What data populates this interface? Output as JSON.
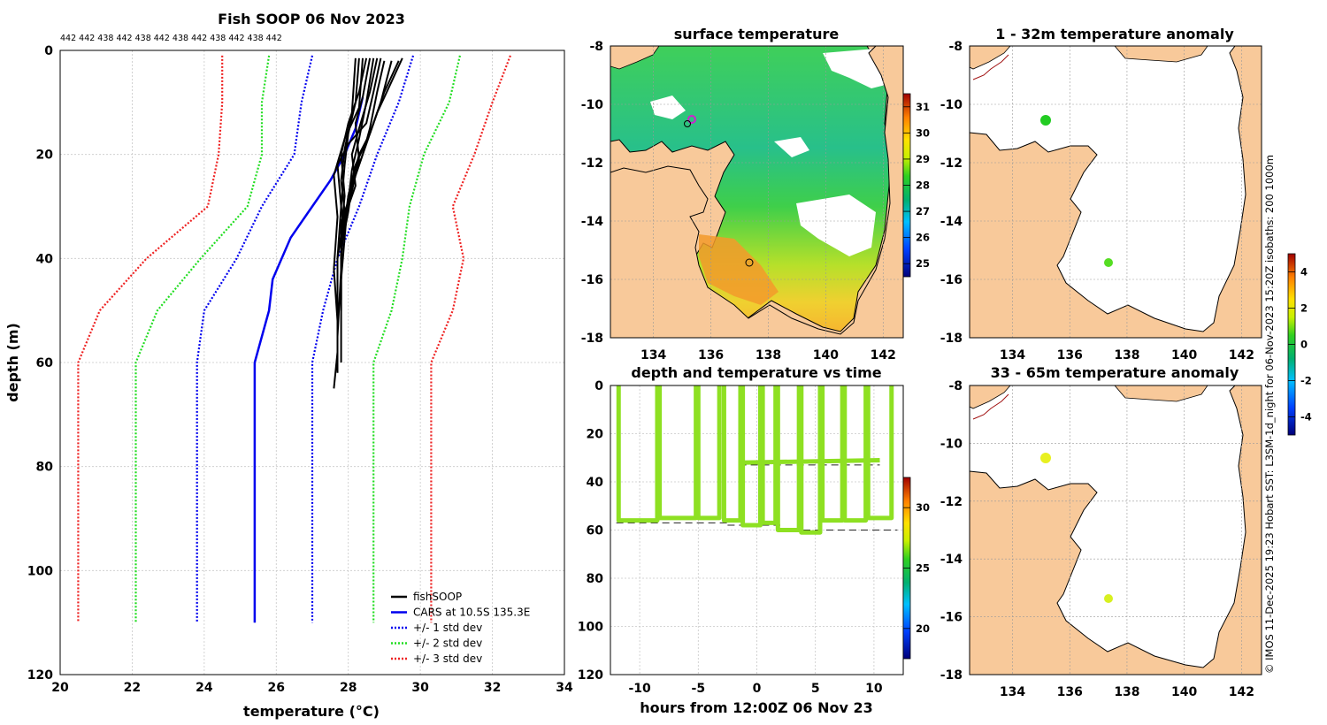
{
  "chart_data": [
    {
      "type": "line",
      "title": "Fish SOOP 06 Nov 2023",
      "header_numbers": "442 442 438 442 438 442 438 442 438 442 438 442",
      "xlabel": "temperature",
      "xlabel_unit": "(°C)",
      "ylabel": "depth (m)",
      "xlim": [
        20,
        34
      ],
      "ylim": [
        0,
        120
      ],
      "xticks": [
        "20",
        "22",
        "24",
        "26",
        "28",
        "30",
        "32",
        "34"
      ],
      "yticks": [
        "0",
        "20",
        "40",
        "60",
        "80",
        "100",
        "120"
      ],
      "legend": [
        "fishSOOP",
        "CARS at 10.5S 135.3E",
        "+/- 1 std dev",
        "+/- 2 std dev",
        "+/- 3 std dev"
      ],
      "series": [
        {
          "name": "CARS at 10.5S 135.3E",
          "color": "#0000ee",
          "style": "solid",
          "points": [
            [
              28.4,
              9
            ],
            [
              28.2,
              15
            ],
            [
              27.9,
              20
            ],
            [
              27.5,
              25
            ],
            [
              26.9,
              31
            ],
            [
              26.4,
              36
            ],
            [
              25.9,
              44
            ],
            [
              25.8,
              50
            ],
            [
              25.4,
              60
            ],
            [
              25.4,
              110
            ]
          ]
        },
        {
          "name": "+1 std dev",
          "color": "#0000ee",
          "style": "dotted",
          "points": [
            [
              29.8,
              1
            ],
            [
              29.4,
              10
            ],
            [
              28.8,
              20
            ],
            [
              28.3,
              30
            ],
            [
              27.7,
              40
            ],
            [
              27.3,
              50
            ],
            [
              27.0,
              60
            ],
            [
              27.0,
              110
            ]
          ]
        },
        {
          "name": "-1 std dev",
          "color": "#0000ee",
          "style": "dotted",
          "points": [
            [
              27.0,
              1
            ],
            [
              26.7,
              10
            ],
            [
              26.5,
              20
            ],
            [
              25.6,
              30
            ],
            [
              24.9,
              40
            ],
            [
              24.0,
              50
            ],
            [
              23.8,
              60
            ],
            [
              23.8,
              110
            ]
          ]
        },
        {
          "name": "+2 std dev",
          "color": "#22dd22",
          "style": "dotted",
          "points": [
            [
              31.1,
              1
            ],
            [
              30.8,
              10
            ],
            [
              30.1,
              20
            ],
            [
              29.7,
              30
            ],
            [
              29.5,
              40
            ],
            [
              29.2,
              50
            ],
            [
              28.7,
              60
            ],
            [
              28.7,
              110
            ]
          ]
        },
        {
          "name": "-2 std dev",
          "color": "#22dd22",
          "style": "dotted",
          "points": [
            [
              25.8,
              1
            ],
            [
              25.6,
              10
            ],
            [
              25.6,
              20
            ],
            [
              25.2,
              30
            ],
            [
              23.9,
              40
            ],
            [
              22.7,
              50
            ],
            [
              22.1,
              60
            ],
            [
              22.1,
              110
            ]
          ]
        },
        {
          "name": "+3 std dev",
          "color": "#ee2222",
          "style": "dotted",
          "points": [
            [
              32.5,
              1
            ],
            [
              32.0,
              10
            ],
            [
              31.5,
              20
            ],
            [
              30.9,
              30
            ],
            [
              31.2,
              40
            ],
            [
              30.9,
              50
            ],
            [
              30.3,
              60
            ],
            [
              30.3,
              110
            ]
          ]
        },
        {
          "name": "-3 std dev",
          "color": "#ee2222",
          "style": "dotted",
          "points": [
            [
              24.5,
              1
            ],
            [
              24.5,
              10
            ],
            [
              24.4,
              20
            ],
            [
              24.1,
              30
            ],
            [
              22.4,
              40
            ],
            [
              21.1,
              50
            ],
            [
              20.5,
              60
            ],
            [
              20.5,
              110
            ]
          ]
        }
      ],
      "fishsoop_profiles": [
        [
          [
            28.3,
            1.5
          ],
          [
            28.2,
            10
          ],
          [
            28.0,
            16
          ],
          [
            27.9,
            22
          ],
          [
            27.8,
            30
          ],
          [
            27.7,
            40
          ],
          [
            27.7,
            50
          ],
          [
            27.7,
            58
          ],
          [
            27.6,
            65
          ]
        ],
        [
          [
            28.5,
            1.5
          ],
          [
            28.3,
            8
          ],
          [
            28.0,
            14
          ],
          [
            27.8,
            20
          ],
          [
            27.9,
            28
          ],
          [
            27.8,
            35
          ],
          [
            27.8,
            45
          ],
          [
            27.8,
            55
          ],
          [
            27.8,
            60
          ]
        ],
        [
          [
            28.8,
            1.5
          ],
          [
            28.6,
            8
          ],
          [
            28.3,
            15
          ],
          [
            28.1,
            20
          ],
          [
            28.2,
            26
          ],
          [
            27.9,
            32
          ],
          [
            27.8,
            40
          ],
          [
            27.8,
            50
          ]
        ],
        [
          [
            29.0,
            2
          ],
          [
            28.8,
            8
          ],
          [
            28.6,
            15
          ],
          [
            28.4,
            20
          ],
          [
            28.1,
            26
          ],
          [
            28.0,
            31
          ],
          [
            27.8,
            38
          ]
        ],
        [
          [
            29.4,
            2
          ],
          [
            29.0,
            8
          ],
          [
            28.6,
            16
          ],
          [
            28.3,
            20
          ],
          [
            28.0,
            28
          ],
          [
            27.9,
            33
          ]
        ],
        [
          [
            28.6,
            1.5
          ],
          [
            28.4,
            9
          ],
          [
            28.2,
            14
          ],
          [
            28.3,
            21
          ],
          [
            28.1,
            27
          ],
          [
            27.8,
            33
          ],
          [
            27.8,
            42
          ],
          [
            27.7,
            55
          ],
          [
            27.7,
            62
          ]
        ],
        [
          [
            28.9,
            1.5
          ],
          [
            28.7,
            8
          ],
          [
            28.5,
            14
          ],
          [
            28.0,
            18
          ],
          [
            27.7,
            22
          ],
          [
            27.8,
            30
          ],
          [
            27.9,
            36
          ]
        ],
        [
          [
            29.2,
            2
          ],
          [
            28.9,
            10
          ],
          [
            28.6,
            16
          ],
          [
            28.2,
            22
          ],
          [
            28.0,
            28
          ],
          [
            27.9,
            36
          ],
          [
            27.8,
            44
          ]
        ],
        [
          [
            28.4,
            1.5
          ],
          [
            28.3,
            11
          ],
          [
            27.9,
            17
          ],
          [
            27.6,
            24
          ],
          [
            27.7,
            32
          ],
          [
            27.6,
            42
          ],
          [
            27.7,
            52
          ],
          [
            27.7,
            60
          ]
        ],
        [
          [
            29.5,
            1.5
          ],
          [
            29.2,
            6
          ],
          [
            28.8,
            12
          ],
          [
            28.5,
            18
          ],
          [
            28.2,
            24
          ],
          [
            28.0,
            30
          ],
          [
            27.9,
            34
          ]
        ],
        [
          [
            28.7,
            1.5
          ],
          [
            28.5,
            10
          ],
          [
            28.3,
            17
          ],
          [
            28.1,
            23
          ],
          [
            28.0,
            29
          ],
          [
            27.8,
            37
          ],
          [
            27.8,
            48
          ]
        ],
        [
          [
            28.2,
            1.5
          ],
          [
            28.1,
            12
          ],
          [
            27.9,
            19
          ],
          [
            27.8,
            25
          ],
          [
            27.9,
            31
          ],
          [
            27.7,
            40
          ],
          [
            27.7,
            48
          ],
          [
            27.7,
            57
          ]
        ]
      ]
    },
    {
      "type": "heatmap",
      "title": "surface temperature",
      "xticks": [
        "134",
        "136",
        "138",
        "140",
        "142"
      ],
      "yticks": [
        "-8",
        "-10",
        "-12",
        "-14",
        "-16",
        "-18"
      ],
      "colorbar_ticks": [
        "31",
        "30",
        "29",
        "28",
        "27",
        "26",
        "25"
      ]
    },
    {
      "type": "heatmap",
      "title": "1 - 32m temperature anomaly",
      "xticks": [
        "134",
        "136",
        "138",
        "140",
        "142"
      ],
      "yticks": [
        "-8",
        "-10",
        "-12",
        "-14",
        "-16",
        "-18"
      ]
    },
    {
      "type": "scatter",
      "title": "depth and temperature vs time",
      "xlabel": "hours from 12:00Z 06 Nov 23",
      "xlim": [
        -12.5,
        12.5
      ],
      "ylim": [
        0,
        120
      ],
      "xticks": [
        "-10",
        "-5",
        "0",
        "5",
        "10"
      ],
      "yticks": [
        "0",
        "20",
        "40",
        "60",
        "80",
        "100",
        "120"
      ],
      "colorbar_ticks": [
        "30",
        "25",
        "20"
      ]
    },
    {
      "type": "heatmap",
      "title": "33 - 65m temperature anomaly",
      "xticks": [
        "134",
        "136",
        "138",
        "140",
        "142"
      ],
      "yticks": [
        "-8",
        "-10",
        "-12",
        "-14",
        "-16",
        "-18"
      ]
    }
  ],
  "anomaly_colorbar_ticks": [
    "4",
    "2",
    "0",
    "-2",
    "-4"
  ],
  "credit": "© IMOS 11-Dec-2025 19:23 Hobart SST: L3SM-1d_night for 06-Nov-2023 15:20Z isobaths: 200  1000m",
  "colors": {
    "land": "#f8c99a",
    "ocean_white": "#ffffff",
    "cars": "#0000ee",
    "std1": "#0000ee",
    "std2": "#22dd22",
    "std3": "#ee2222",
    "fish": "#000000"
  }
}
